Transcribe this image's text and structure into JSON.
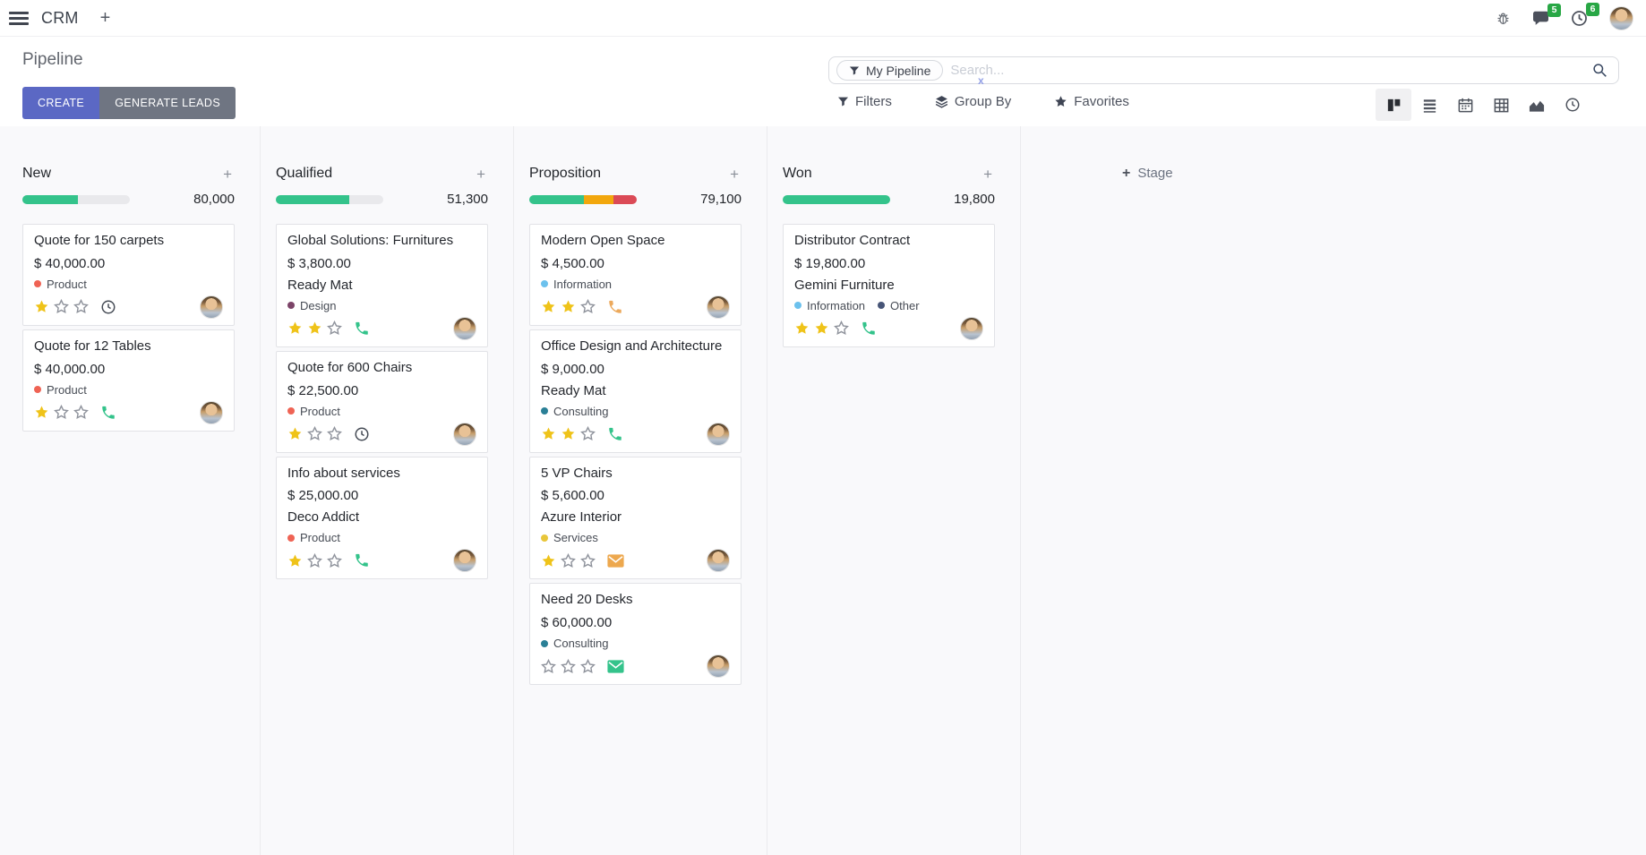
{
  "navbar": {
    "app_name": "CRM",
    "plus": "+",
    "message_badge": "5",
    "activity_badge": "6"
  },
  "page": {
    "title": "Pipeline"
  },
  "buttons": {
    "create": "CREATE",
    "generate_leads": "GENERATE LEADS"
  },
  "search": {
    "facet": "My Pipeline",
    "placeholder": "Search...",
    "clear": "x"
  },
  "toolbar": {
    "filters": "Filters",
    "group_by": "Group By",
    "favorites": "Favorites"
  },
  "switcher": [
    {
      "name": "kanban",
      "icon": "kanban-icon",
      "active": true
    },
    {
      "name": "list",
      "icon": "list-icon",
      "active": false
    },
    {
      "name": "calendar",
      "icon": "calendar-icon",
      "active": false
    },
    {
      "name": "pivot",
      "icon": "pivot-icon",
      "active": false
    },
    {
      "name": "graph",
      "icon": "area-chart-icon",
      "active": false
    },
    {
      "name": "activity",
      "icon": "clock-icon",
      "active": false
    }
  ],
  "glyphs": {
    "plus": "+"
  },
  "colors": {
    "primary": "#5b68c4",
    "secondary": "#6f7582",
    "badge_green": "#28a745",
    "progress_green": "#34c38b",
    "progress_orange": "#f2a70d",
    "progress_red": "#db4a56",
    "progress_track": "#e9e9ec",
    "star_gold": "#efc319"
  },
  "board": {
    "add_stage_label": "Stage",
    "columns": [
      {
        "title": "New",
        "counter": "80,000",
        "progress": [
          {
            "color": "#34c38b",
            "frac": 0.52
          }
        ],
        "cards": [
          {
            "title": "Quote for 150 carpets",
            "amount": "$ 40,000.00",
            "partner": "",
            "tags": [
              {
                "label": "Product",
                "color": "#ef6354"
              }
            ],
            "stars": 1,
            "activity": {
              "icon": "clock-icon",
              "color": "#454b55"
            }
          },
          {
            "title": "Quote for 12 Tables",
            "amount": "$ 40,000.00",
            "partner": "",
            "tags": [
              {
                "label": "Product",
                "color": "#ef6354"
              }
            ],
            "stars": 1,
            "activity": {
              "icon": "phone-icon",
              "color": "#34c38b"
            }
          }
        ]
      },
      {
        "title": "Qualified",
        "counter": "51,300",
        "progress": [
          {
            "color": "#34c38b",
            "frac": 0.68
          }
        ],
        "cards": [
          {
            "title": "Global Solutions: Furnitures",
            "amount": "$ 3,800.00",
            "partner": "Ready Mat",
            "tags": [
              {
                "label": "Design",
                "color": "#7c4468"
              }
            ],
            "stars": 2,
            "activity": {
              "icon": "phone-icon",
              "color": "#34c38b"
            }
          },
          {
            "title": "Quote for 600 Chairs",
            "amount": "$ 22,500.00",
            "partner": "",
            "tags": [
              {
                "label": "Product",
                "color": "#ef6354"
              }
            ],
            "stars": 1,
            "activity": {
              "icon": "clock-icon",
              "color": "#454b55"
            }
          },
          {
            "title": "Info about services",
            "amount": "$ 25,000.00",
            "partner": "Deco Addict",
            "tags": [
              {
                "label": "Product",
                "color": "#ef6354"
              }
            ],
            "stars": 1,
            "activity": {
              "icon": "phone-icon",
              "color": "#34c38b"
            }
          }
        ]
      },
      {
        "title": "Proposition",
        "counter": "79,100",
        "progress": [
          {
            "color": "#34c38b",
            "frac": 0.51
          },
          {
            "color": "#f2a70d",
            "frac": 0.27
          },
          {
            "color": "#db4a56",
            "frac": 0.22
          }
        ],
        "cards": [
          {
            "title": "Modern Open Space",
            "amount": "$ 4,500.00",
            "partner": "",
            "tags": [
              {
                "label": "Information",
                "color": "#6cc1ed"
              }
            ],
            "stars": 2,
            "activity": {
              "icon": "phone-icon",
              "color": "#eca95c"
            }
          },
          {
            "title": "Office Design and Architecture",
            "amount": "$ 9,000.00",
            "partner": "Ready Mat",
            "tags": [
              {
                "label": "Consulting",
                "color": "#2a7f96"
              }
            ],
            "stars": 2,
            "activity": {
              "icon": "phone-icon",
              "color": "#34c38b"
            }
          },
          {
            "title": "5 VP Chairs",
            "amount": "$ 5,600.00",
            "partner": "Azure Interior",
            "tags": [
              {
                "label": "Services",
                "color": "#e8c63a"
              }
            ],
            "stars": 1,
            "activity": {
              "icon": "envelope-icon",
              "color": "#eda84e"
            }
          },
          {
            "title": "Need 20 Desks",
            "amount": "$ 60,000.00",
            "partner": "",
            "tags": [
              {
                "label": "Consulting",
                "color": "#2a7f96"
              }
            ],
            "stars": 0,
            "activity": {
              "icon": "envelope-icon",
              "color": "#34c38b"
            }
          }
        ]
      },
      {
        "title": "Won",
        "counter": "19,800",
        "progress": [
          {
            "color": "#34c38b",
            "frac": 1
          }
        ],
        "cards": [
          {
            "title": "Distributor Contract",
            "amount": "$ 19,800.00",
            "partner": "Gemini Furniture",
            "tags": [
              {
                "label": "Information",
                "color": "#6cc1ed"
              },
              {
                "label": "Other",
                "color": "#475577"
              }
            ],
            "stars": 2,
            "activity": {
              "icon": "phone-icon",
              "color": "#34c38b"
            }
          }
        ]
      }
    ]
  }
}
